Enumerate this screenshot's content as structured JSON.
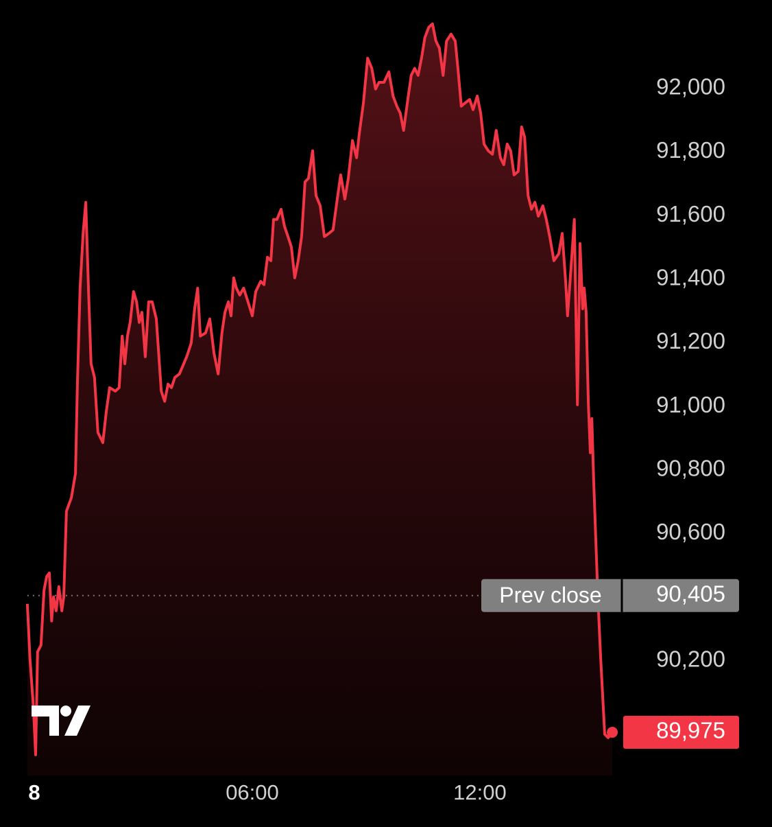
{
  "chart_data": {
    "type": "area",
    "color": "#f23645",
    "x": [
      0.07,
      0.14,
      0.23,
      0.29,
      0.34,
      0.43,
      0.51,
      0.58,
      0.65,
      0.71,
      0.76,
      0.83,
      0.9,
      0.98,
      1.03,
      1.1,
      1.23,
      1.34,
      1.39,
      1.46,
      1.54,
      1.61,
      1.68,
      1.75,
      1.84,
      1.93,
      2.06,
      2.15,
      2.24,
      2.39,
      2.49,
      2.57,
      2.64,
      2.71,
      2.78,
      2.87,
      2.95,
      3.02,
      3.09,
      3.18,
      3.27,
      3.36,
      3.47,
      3.6,
      3.69,
      3.78,
      3.87,
      3.96,
      4.08,
      4.27,
      4.39,
      4.48,
      4.56,
      4.63,
      4.77,
      4.88,
      4.99,
      5.1,
      5.2,
      5.28,
      5.37,
      5.44,
      5.51,
      5.58,
      5.67,
      5.77,
      5.86,
      6.0,
      6.09,
      6.22,
      6.31,
      6.4,
      6.49,
      6.56,
      6.65,
      6.76,
      6.85,
      6.94,
      7.03,
      7.12,
      7.21,
      7.3,
      7.39,
      7.48,
      7.59,
      7.68,
      7.79,
      7.9,
      8.02,
      8.13,
      8.24,
      8.33,
      8.44,
      8.53,
      8.64,
      8.75,
      8.82,
      8.93,
      9.04,
      9.15,
      9.25,
      9.34,
      9.47,
      9.6,
      9.71,
      9.81,
      9.9,
      9.99,
      10.1,
      10.19,
      10.28,
      10.37,
      10.46,
      10.55,
      10.65,
      10.75,
      10.84,
      10.93,
      11.03,
      11.12,
      11.24,
      11.35,
      11.42,
      11.51,
      11.62,
      11.73,
      11.82,
      11.93,
      12.02,
      12.11,
      12.22,
      12.33,
      12.43,
      12.54,
      12.63,
      12.72,
      12.81,
      12.9,
      13.01,
      13.1,
      13.18,
      13.27,
      13.36,
      13.45,
      13.54,
      13.66,
      13.75,
      13.84,
      13.95,
      14.08,
      14.17,
      14.26,
      14.31,
      14.39,
      14.49,
      14.57,
      14.64,
      14.71,
      14.75,
      14.8,
      14.86,
      14.91,
      14.95,
      15.0,
      15.11,
      15.18,
      15.29,
      15.38,
      15.49
    ],
    "values": [
      90379,
      90206,
      90055,
      89904,
      90228,
      90249,
      90422,
      90465,
      90476,
      90325,
      90401,
      90357,
      90433,
      90357,
      90401,
      90670,
      90713,
      90789,
      91070,
      91372,
      91544,
      91642,
      91372,
      91134,
      91091,
      90918,
      90886,
      90983,
      91059,
      91048,
      91059,
      91221,
      91134,
      91221,
      91264,
      91361,
      91329,
      91264,
      91296,
      91156,
      91329,
      91329,
      91275,
      91048,
      91016,
      91070,
      91059,
      91091,
      91102,
      91156,
      91199,
      91307,
      91372,
      91221,
      91231,
      91275,
      91167,
      91102,
      91231,
      91296,
      91329,
      91285,
      91404,
      91372,
      91350,
      91372,
      91339,
      91285,
      91361,
      91393,
      91383,
      91469,
      91458,
      91588,
      91588,
      91620,
      91566,
      91534,
      91501,
      91404,
      91458,
      91534,
      91706,
      91717,
      91804,
      91663,
      91631,
      91534,
      91544,
      91555,
      91652,
      91728,
      91652,
      91717,
      91836,
      91782,
      91857,
      91955,
      92095,
      92063,
      91998,
      92019,
      92019,
      92052,
      91976,
      91944,
      91922,
      91868,
      91965,
      92041,
      92063,
      92041,
      92095,
      92160,
      92192,
      92203,
      92149,
      92127,
      92041,
      92149,
      92171,
      92149,
      92063,
      91944,
      91955,
      91965,
      91933,
      91976,
      91922,
      91825,
      91804,
      91793,
      91868,
      91782,
      91760,
      91825,
      91804,
      91728,
      91739,
      91879,
      91847,
      91663,
      91620,
      91642,
      91598,
      91631,
      91588,
      91534,
      91458,
      91480,
      91544,
      91393,
      91285,
      91415,
      91588,
      91005,
      91512,
      91307,
      91372,
      91296,
      91005,
      90854,
      90962,
      90767,
      90401,
      90217,
      89969,
      89958,
      89975
    ],
    "last_label": "89,975",
    "prev_close": {
      "label": "Prev close",
      "value": 90405,
      "value_label": "90,405"
    },
    "xlim": [
      0,
      19.7
    ],
    "xticks": [
      {
        "value": 0,
        "label": "8"
      },
      {
        "value": 6,
        "label": "06:00"
      },
      {
        "value": 12,
        "label": "12:00"
      }
    ],
    "ylim": [
      89839,
      92278
    ],
    "yticks": [
      {
        "value": 90200,
        "label": "90,200"
      },
      {
        "value": 90600,
        "label": "90,600"
      },
      {
        "value": 90800,
        "label": "90,800"
      },
      {
        "value": 91000,
        "label": "91,000"
      },
      {
        "value": 91200,
        "label": "91,200"
      },
      {
        "value": 91400,
        "label": "91,400"
      },
      {
        "value": 91600,
        "label": "91,600"
      },
      {
        "value": 91800,
        "label": "91,800"
      },
      {
        "value": 92000,
        "label": "92,000"
      }
    ]
  }
}
